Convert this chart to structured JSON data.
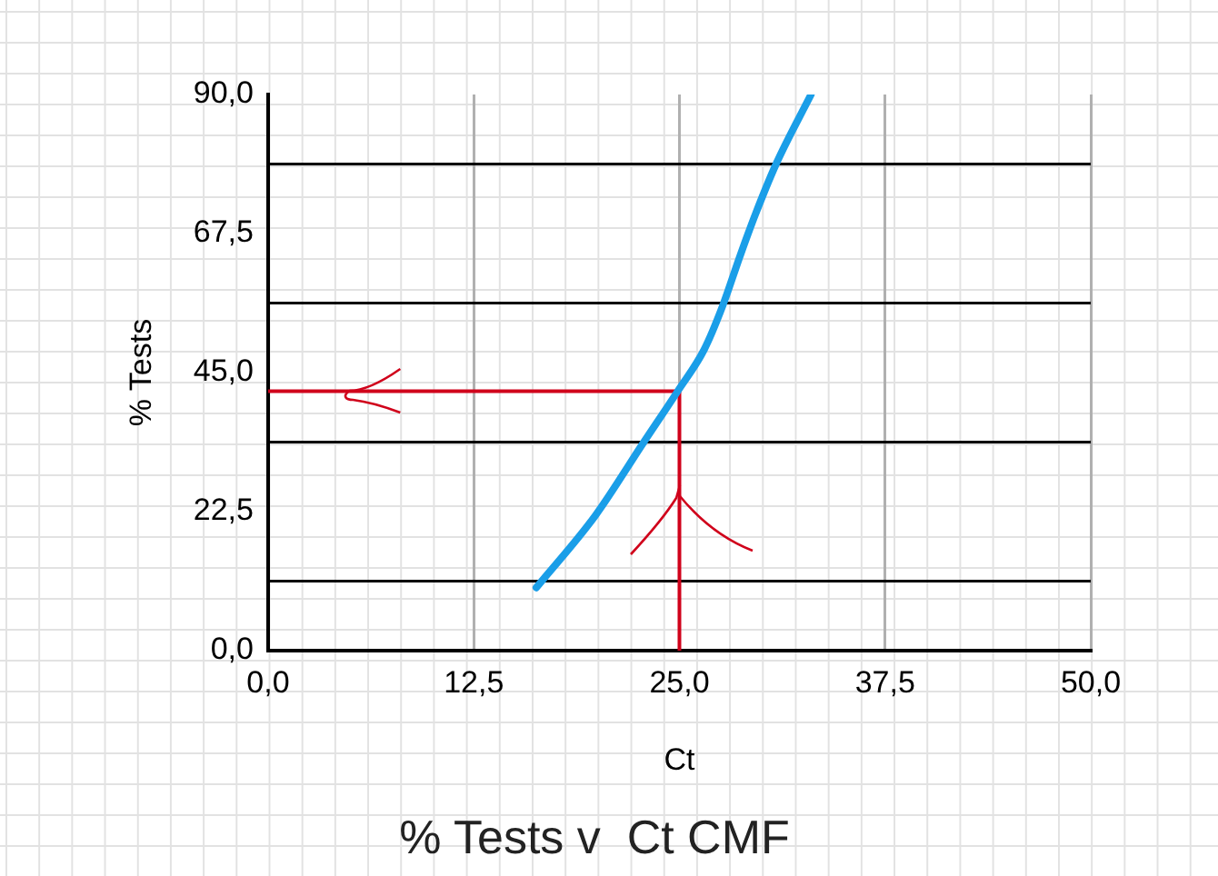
{
  "chart_data": {
    "type": "line",
    "title": "% Tests v  Ct CMF",
    "xlabel": "Ct",
    "ylabel": "% Tests",
    "xlim": [
      0,
      50
    ],
    "xticks": [
      {
        "value": 0,
        "label": "0,0"
      },
      {
        "value": 12.5,
        "label": "12,5"
      },
      {
        "value": 25,
        "label": "25,0"
      },
      {
        "value": 37.5,
        "label": "37,5"
      },
      {
        "value": 50,
        "label": "50,0"
      }
    ],
    "ylim": [
      0,
      90
    ],
    "yticks": [
      {
        "value": 0,
        "label": "0,0"
      },
      {
        "value": 22.5,
        "label": "22,5"
      },
      {
        "value": 45,
        "label": "45,0"
      },
      {
        "value": 67.5,
        "label": "67,5"
      },
      {
        "value": 90,
        "label": "90,0"
      }
    ],
    "grid": "x",
    "legend": false,
    "marker": "none",
    "line_style": "solid",
    "series": [
      {
        "color": "#1a9ee8",
        "x": [
          16.3,
          19.9,
          22.8,
          24.9,
          26.5,
          27.6,
          28.7,
          29.6,
          30.9,
          33.0
        ],
        "values": [
          10.2,
          21.9,
          33.6,
          42.0,
          48.7,
          55.6,
          64.0,
          70.5,
          78.9,
          90.0
        ]
      },
      {
        "color": "#d0021b",
        "x": [
          0,
          25,
          25
        ],
        "values": [
          42,
          42,
          0
        ]
      }
    ],
    "ref_lines": [
      {
        "axis": "y",
        "value": 11.25,
        "color": "#000000"
      },
      {
        "axis": "y",
        "value": 33.75,
        "color": "#000000"
      },
      {
        "axis": "y",
        "value": 56.25,
        "color": "#000000"
      },
      {
        "axis": "y",
        "value": 78.75,
        "color": "#000000"
      }
    ]
  }
}
